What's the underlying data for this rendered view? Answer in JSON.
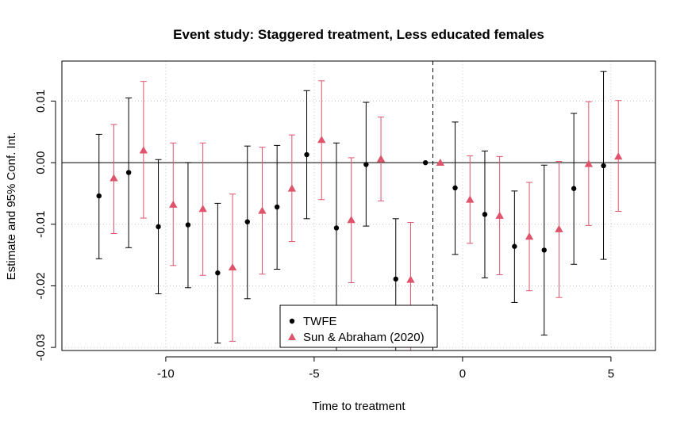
{
  "chart_data": {
    "type": "scatter",
    "title": "Event study: Staggered treatment, Less educated females",
    "xlabel": "Time to treatment",
    "ylabel": "Estimate and 95% Conf. Int.",
    "xlim": [
      -13.5,
      6.5
    ],
    "ylim": [
      -0.0305,
      0.0165
    ],
    "x_ticks": [
      -10,
      -5,
      0,
      5
    ],
    "x_tick_labels": [
      "-10",
      "-5",
      "0",
      "5"
    ],
    "y_ticks": [
      -0.03,
      -0.02,
      -0.01,
      0.0,
      0.01
    ],
    "y_tick_labels": [
      "-0.03",
      "-0.02",
      "-0.01",
      "0.00",
      "0.01"
    ],
    "grid": true,
    "reference_hline": 0,
    "reference_vline": -1,
    "legend_position": "bottom-center",
    "series": [
      {
        "name": "TWFE",
        "color": "#000000",
        "marker": "circle",
        "x": [
          -12.25,
          -11.25,
          -10.25,
          -9.25,
          -8.25,
          -7.25,
          -6.25,
          -5.25,
          -4.25,
          -3.25,
          -2.25,
          -1.25,
          -0.25,
          0.75,
          1.75,
          2.75,
          3.75,
          4.75
        ],
        "estimate": [
          -0.0054,
          -0.0016,
          -0.0104,
          -0.0101,
          -0.0179,
          -0.0096,
          -0.0072,
          0.0013,
          -0.0106,
          -0.0003,
          -0.0189,
          0.0,
          -0.0041,
          -0.0084,
          -0.0136,
          -0.0142,
          -0.0042,
          -0.0005
        ],
        "ci_low": [
          -0.0156,
          -0.0138,
          -0.0213,
          -0.0203,
          -0.0293,
          -0.0221,
          -0.0173,
          -0.0091,
          -0.0305,
          -0.0103,
          -0.0305,
          0.0,
          -0.0149,
          -0.0187,
          -0.0227,
          -0.028,
          -0.0165,
          -0.0157
        ],
        "ci_high": [
          0.0046,
          0.0105,
          0.0005,
          0.0,
          -0.0066,
          0.0027,
          0.0028,
          0.0117,
          0.0032,
          0.0098,
          -0.0091,
          0.0,
          0.0066,
          0.0019,
          -0.0046,
          -0.0004,
          0.008,
          0.0148
        ]
      },
      {
        "name": "Sun & Abraham (2020)",
        "color": "#DF536B",
        "marker": "triangle",
        "x": [
          -11.75,
          -10.75,
          -9.75,
          -8.75,
          -7.75,
          -6.75,
          -5.75,
          -4.75,
          -3.75,
          -2.75,
          -1.75,
          -0.75,
          0.25,
          1.25,
          2.25,
          3.25,
          4.25,
          5.25
        ],
        "estimate": [
          -0.0025,
          0.002,
          -0.0068,
          -0.0075,
          -0.017,
          -0.0078,
          -0.0042,
          0.0037,
          -0.0093,
          0.0006,
          -0.019,
          0.0,
          -0.006,
          -0.0086,
          -0.012,
          -0.0108,
          -0.0002,
          0.001
        ],
        "ci_low": [
          -0.0115,
          -0.009,
          -0.0167,
          -0.0183,
          -0.029,
          -0.0181,
          -0.0128,
          -0.006,
          -0.0195,
          -0.0062,
          -0.0305,
          0.0,
          -0.0131,
          -0.0182,
          -0.0208,
          -0.0219,
          -0.0102,
          -0.0079
        ],
        "ci_high": [
          0.0062,
          0.0132,
          0.0032,
          0.0032,
          -0.0051,
          0.0025,
          0.0045,
          0.0133,
          0.0008,
          0.0074,
          -0.0097,
          0.0,
          0.0011,
          0.001,
          -0.0032,
          0.0002,
          0.0099,
          0.0101
        ]
      }
    ]
  }
}
